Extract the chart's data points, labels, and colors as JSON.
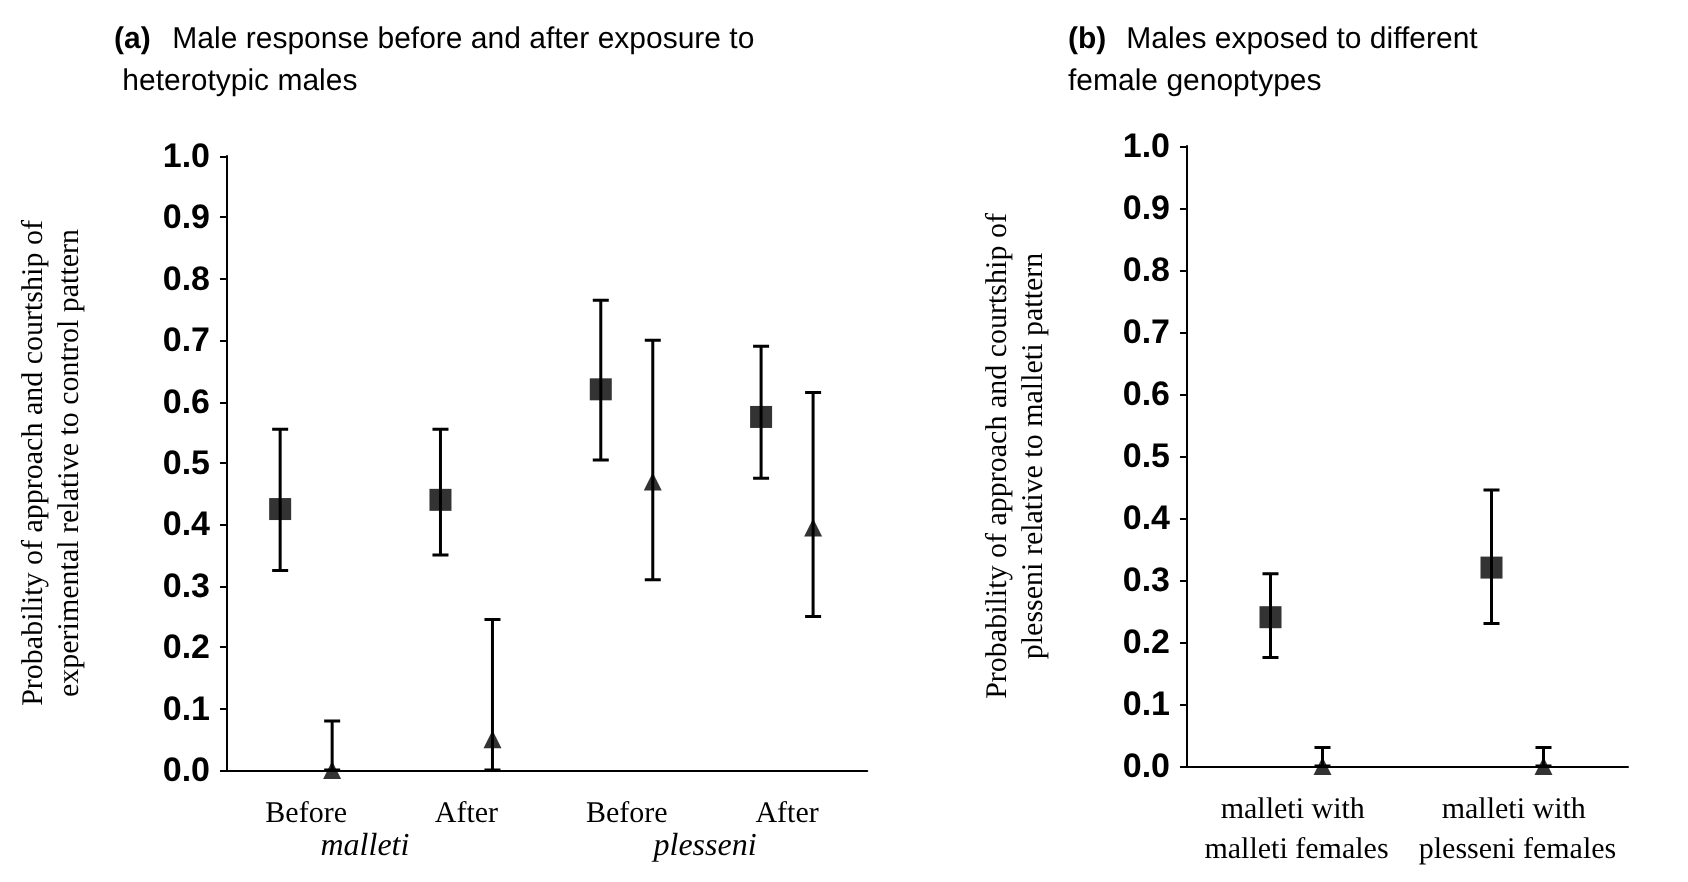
{
  "chart_data": [
    {
      "type": "scatter",
      "title": "(a) Male response before and after exposure to heterotypic males",
      "ylabel": "Probability of approach and courtship of experimental relative to control pattern",
      "categories": [
        "Before",
        "After",
        "Before",
        "After"
      ],
      "annotations": [
        "malleti",
        "plesseni"
      ],
      "series": [
        {
          "color": "#000000",
          "marker": "square",
          "values": [
            0.425,
            0.44,
            0.62,
            0.575
          ],
          "errors": [
            [
              0.325,
              0.555
            ],
            [
              0.35,
              0.555
            ],
            [
              0.505,
              0.765
            ],
            [
              0.475,
              0.69
            ]
          ]
        },
        {
          "color": "#000000",
          "marker": "triangle",
          "values": [
            0.0,
            0.05,
            0.47,
            0.395
          ],
          "errors": [
            [
              0.0,
              0.08
            ],
            [
              0.0,
              0.245
            ],
            [
              0.31,
              0.7
            ],
            [
              0.25,
              0.615
            ]
          ]
        }
      ],
      "ylim": [
        0,
        1
      ],
      "yticks": [
        {
          "value": 0,
          "label": "0.0"
        },
        {
          "value": 0.1,
          "label": "0.1"
        },
        {
          "value": 0.2,
          "label": "0.2"
        },
        {
          "value": 0.3,
          "label": "0.3"
        },
        {
          "value": 0.4,
          "label": "0.4"
        },
        {
          "value": 0.5,
          "label": "0.5"
        },
        {
          "value": 0.6,
          "label": "0.6"
        },
        {
          "value": 0.7,
          "label": "0.7"
        },
        {
          "value": 0.8,
          "label": "0.8"
        },
        {
          "value": 0.9,
          "label": "0.9"
        },
        {
          "value": 1,
          "label": "1.0"
        }
      ],
      "grid": false
    },
    {
      "type": "scatter",
      "title": "(b) Males exposed to different female genoptypes",
      "ylabel": "Probability of approach and courtship of plesseni relative to malleti pattern",
      "categories": [
        "malleti with malleti females",
        "malleti with plesseni females"
      ],
      "series": [
        {
          "color": "#000000",
          "marker": "square",
          "values": [
            0.24,
            0.32
          ],
          "errors": [
            [
              0.175,
              0.31
            ],
            [
              0.23,
              0.445
            ]
          ]
        },
        {
          "color": "#000000",
          "marker": "triangle",
          "values": [
            0.0,
            0.0
          ],
          "errors": [
            [
              0.0,
              0.03
            ],
            [
              0.0,
              0.03
            ]
          ]
        }
      ],
      "ylim": [
        0,
        1
      ],
      "yticks": [
        {
          "value": 0,
          "label": "0.0"
        },
        {
          "value": 0.1,
          "label": "0.1"
        },
        {
          "value": 0.2,
          "label": "0.2"
        },
        {
          "value": 0.3,
          "label": "0.3"
        },
        {
          "value": 0.4,
          "label": "0.4"
        },
        {
          "value": 0.5,
          "label": "0.5"
        },
        {
          "value": 0.6,
          "label": "0.6"
        },
        {
          "value": 0.7,
          "label": "0.7"
        },
        {
          "value": 0.8,
          "label": "0.8"
        },
        {
          "value": 0.9,
          "label": "0.9"
        },
        {
          "value": 1,
          "label": "1.0"
        }
      ],
      "grid": false
    }
  ]
}
